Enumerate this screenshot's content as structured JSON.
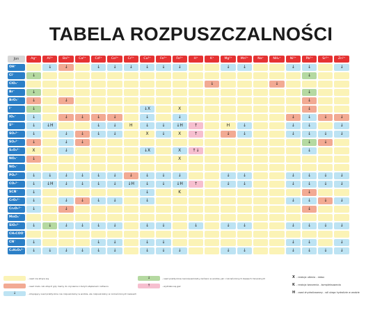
{
  "title": "TABELA ROZPUSZCZALNOŚCI",
  "header_label": "Jon",
  "colors": {
    "Y": "#fbf3b6",
    "B": "#bde3f3",
    "R": "#f2aa93",
    "G": "#b5d9a1",
    "P": "#f6bfcf",
    "E": "#ececec",
    "cation_red": "#e53232",
    "anion_blue": "#2b7fc7"
  },
  "cations": [
    "Ag⁺",
    "Al³⁺",
    "Ba²⁺",
    "Ca²⁺",
    "Cd²⁺",
    "Co²⁺",
    "Cr³⁺",
    "Cu²⁺",
    "Fe²⁺",
    "Fe³⁺",
    "H⁺",
    "K⁺",
    "Mg²⁺",
    "Mn²⁺",
    "Na⁺",
    "NH₄⁺",
    "Ni²⁺",
    "Pb²⁺",
    "Sr²⁺",
    "Zn²⁺"
  ],
  "rows": [
    {
      "anion": "OH⁻",
      "cells": [
        "Y:",
        "B:↓",
        "R:↓",
        "Y:",
        "B:↓",
        "B:↓",
        "B:↓",
        "B:↓",
        "B:↓",
        "B:↓",
        "Y:",
        "Y:",
        "B:↓",
        "B:↓",
        "Y:",
        "Y:",
        "B:↓",
        "B:↓",
        "Y:",
        "B:↓"
      ]
    },
    {
      "anion": "Cl⁻",
      "cells": [
        "G:↓",
        "Y:",
        "Y:",
        "Y:",
        "Y:",
        "Y:",
        "Y:",
        "Y:",
        "Y:",
        "Y:",
        "Y:",
        "Y:",
        "Y:",
        "Y:",
        "Y:",
        "Y:",
        "Y:",
        "G:↓",
        "Y:",
        "Y:"
      ]
    },
    {
      "anion": "ClO₄⁻",
      "cells": [
        "Y:",
        "Y:",
        "Y:",
        "Y:",
        "Y:",
        "Y:",
        "Y:",
        "Y:",
        "Y:",
        "Y:",
        "Y:",
        "R:↓",
        "Y:",
        "Y:",
        "Y:",
        "R:↓",
        "Y:",
        "Y:",
        "Y:",
        "Y:"
      ]
    },
    {
      "anion": "Br⁻",
      "cells": [
        "G:↓",
        "Y:",
        "Y:",
        "Y:",
        "Y:",
        "Y:",
        "Y:",
        "Y:",
        "Y:",
        "Y:",
        "Y:",
        "Y:",
        "Y:",
        "Y:",
        "Y:",
        "Y:",
        "Y:",
        "G:↓",
        "Y:",
        "Y:"
      ]
    },
    {
      "anion": "BrO₃⁻",
      "cells": [
        "R:↓",
        "Y:",
        "R:↓",
        "Y:",
        "Y:",
        "Y:",
        "Y:",
        "Y:",
        "Y:",
        "Y:",
        "Y:",
        "Y:",
        "Y:",
        "Y:",
        "Y:",
        "Y:",
        "Y:",
        "R:↓",
        "Y:",
        "Y:"
      ]
    },
    {
      "anion": "I⁻",
      "cells": [
        "G:↓",
        "Y:",
        "Y:",
        "Y:",
        "Y:",
        "Y:",
        "Y:",
        "B:↓X",
        "Y:",
        "Y:X",
        "Y:",
        "Y:",
        "Y:",
        "Y:",
        "Y:",
        "Y:",
        "Y:",
        "R:↓",
        "Y:",
        "Y:"
      ]
    },
    {
      "anion": "IO₃⁻",
      "cells": [
        "B:↓",
        "Y:",
        "R:↓",
        "R:↓",
        "R:↓",
        "R:↓",
        "Y:",
        "B:↓",
        "Y:",
        "B:↓",
        "Y:",
        "Y:",
        "Y:",
        "Y:",
        "Y:",
        "Y:",
        "R:↓",
        "B:↓",
        "R:↓",
        "R:↓"
      ]
    },
    {
      "anion": "S²⁻",
      "cells": [
        "B:↓",
        "B:↓H",
        "Y:",
        "Y:",
        "B:↓",
        "B:↓",
        "Y:H",
        "B:↓",
        "B:↓",
        "B:↓H",
        "P:↑",
        "Y:",
        "Y:H",
        "B:↓",
        "Y:",
        "Y:",
        "B:↓",
        "B:↓",
        "Y:",
        "B:↓"
      ]
    },
    {
      "anion": "SO₃²⁻",
      "cells": [
        "B:↓",
        "Y:",
        "B:↓",
        "R:↓",
        "B:↓",
        "B:↓",
        "Y:",
        "Y:X",
        "B:↓",
        "Y:X",
        "P:↑",
        "Y:",
        "R:↓",
        "B:↓",
        "Y:",
        "Y:",
        "B:↓",
        "B:↓",
        "B:↓",
        "B:↓"
      ]
    },
    {
      "anion": "SO₄²⁻",
      "cells": [
        "R:↓",
        "Y:",
        "B:↓",
        "R:↓",
        "Y:",
        "Y:",
        "Y:",
        "Y:",
        "Y:",
        "Y:",
        "Y:",
        "Y:",
        "Y:",
        "Y:",
        "Y:",
        "Y:",
        "Y:",
        "G:↓",
        "R:↓",
        "Y:"
      ]
    },
    {
      "anion": "S₂O₃²⁻",
      "cells": [
        "Y:X",
        "Y:",
        "B:↓",
        "Y:",
        "Y:",
        "Y:",
        "Y:",
        "B:↓X",
        "Y:",
        "B:X",
        "P:↑↓",
        "Y:",
        "Y:",
        "Y:",
        "Y:",
        "Y:",
        "Y:",
        "B:↓",
        "Y:",
        "Y:"
      ]
    },
    {
      "anion": "NO₂⁻",
      "cells": [
        "R:↓",
        "Y:",
        "Y:",
        "Y:",
        "Y:",
        "Y:",
        "Y:",
        "Y:",
        "Y:",
        "Y:X",
        "Y:",
        "Y:",
        "Y:",
        "Y:",
        "Y:",
        "Y:",
        "Y:",
        "Y:",
        "Y:",
        "Y:"
      ]
    },
    {
      "anion": "NO₃⁻",
      "cells": [
        "Y:",
        "Y:",
        "Y:",
        "Y:",
        "Y:",
        "Y:",
        "Y:",
        "Y:",
        "Y:",
        "Y:",
        "Y:",
        "Y:",
        "Y:",
        "Y:",
        "Y:",
        "Y:",
        "Y:",
        "Y:",
        "Y:",
        "Y:"
      ]
    },
    {
      "anion": "PO₄³⁻",
      "cells": [
        "B:↓",
        "B:↓",
        "B:↓",
        "B:↓",
        "B:↓",
        "B:↓",
        "R:↓",
        "B:↓",
        "B:↓",
        "B:↓",
        "Y:",
        "Y:",
        "B:↓",
        "B:↓",
        "Y:",
        "Y:",
        "B:↓",
        "B:↓",
        "B:↓",
        "B:↓"
      ]
    },
    {
      "anion": "CO₃²⁻",
      "cells": [
        "B:↓",
        "B:↓H",
        "B:↓",
        "B:↓",
        "B:↓",
        "B:↓",
        "B:↓H",
        "B:↓",
        "B:↓",
        "B:↓H",
        "P:↑",
        "Y:",
        "B:↓",
        "B:↓",
        "Y:",
        "Y:",
        "B:↓",
        "B:↓",
        "B:↓",
        "B:↓"
      ]
    },
    {
      "anion": "SCN⁻",
      "cells": [
        "B:↓",
        "Y:",
        "Y:",
        "Y:",
        "Y:",
        "Y:",
        "Y:",
        "B:↓",
        "Y:",
        "Y:K",
        "Y:",
        "Y:",
        "Y:",
        "Y:",
        "Y:",
        "Y:",
        "Y:",
        "R:↓",
        "Y:",
        "Y:"
      ]
    },
    {
      "anion": "CrO₄²⁻",
      "cells": [
        "B:↓",
        "Y:",
        "B:↓",
        "R:↓",
        "B:↓",
        "B:↓",
        "Y:",
        "B:↓",
        "Y:",
        "Y:",
        "Y:",
        "Y:",
        "Y:",
        "Y:",
        "Y:",
        "Y:",
        "B:↓",
        "B:↓",
        "R:↓",
        "B:↓"
      ]
    },
    {
      "anion": "Cr₂O₇²⁻",
      "cells": [
        "B:↓",
        "Y:",
        "R:↓",
        "Y:",
        "Y:",
        "Y:",
        "Y:",
        "Y:",
        "Y:",
        "Y:",
        "Y:",
        "Y:",
        "Y:",
        "Y:",
        "Y:",
        "Y:",
        "Y:",
        "R:↓",
        "Y:",
        "Y:"
      ]
    },
    {
      "anion": "MnO₄⁻",
      "cells": [
        "Y:",
        "Y:",
        "Y:",
        "Y:",
        "Y:",
        "Y:",
        "Y:",
        "Y:",
        "Y:",
        "Y:",
        "Y:",
        "Y:",
        "Y:",
        "Y:",
        "Y:",
        "Y:",
        "Y:",
        "Y:",
        "Y:",
        "Y:"
      ]
    },
    {
      "anion": "SiO₃²⁻",
      "cells": [
        "B:↓",
        "G:↓",
        "B:↓",
        "B:↓",
        "B:↓",
        "B:↓",
        "Y:",
        "B:↓",
        "B:↓",
        "Y:",
        "B:↓",
        "Y:",
        "B:↓",
        "B:↓",
        "Y:",
        "Y:",
        "B:↓",
        "B:↓",
        "B:↓",
        "B:↓"
      ]
    },
    {
      "anion": "CH₃COO⁻",
      "cells": [
        "Y:",
        "Y:",
        "Y:",
        "Y:",
        "Y:",
        "Y:",
        "Y:",
        "Y:",
        "Y:",
        "Y:",
        "Y:",
        "Y:",
        "Y:",
        "Y:",
        "Y:",
        "Y:",
        "Y:",
        "Y:",
        "Y:",
        "Y:"
      ]
    },
    {
      "anion": "CN⁻",
      "cells": [
        "B:↓",
        "Y:",
        "Y:",
        "Y:",
        "B:↓",
        "B:↓",
        "Y:",
        "B:↓",
        "B:↓",
        "Y:",
        "Y:",
        "Y:",
        "Y:",
        "Y:",
        "Y:",
        "Y:",
        "B:↓",
        "B:↓",
        "Y:",
        "B:↓"
      ]
    },
    {
      "anion": "C₂H₂O₄²⁻",
      "cells": [
        "B:↓",
        "B:↓",
        "B:↓",
        "B:↓",
        "B:↓",
        "B:↓",
        "Y:",
        "B:↓",
        "B:↓",
        "B:↓",
        "Y:",
        "Y:",
        "B:↓",
        "B:↓",
        "Y:",
        "Y:",
        "B:↓",
        "B:↓",
        "B:↓",
        "B:↓"
      ]
    }
  ],
  "legend": {
    "yellow": "- osad nie strąca się",
    "red": "- osad mało- lub strącić gdy mamy do czynienia z dużym stężeniem roztworu",
    "blue": "- strącający osad praktycznie nie rozpuszczalny w wodzie, ale rozpuszczalny w rozcieńczonych kwasach",
    "blue_symbol": "↓",
    "green": "- osad praktycznie nierozpuszczalny zarówno w wodzie, jak i rozcieńczonych kwasach mineralnych",
    "green_symbol": "↓",
    "pink": "- wydziela się gaz",
    "pink_symbol": "↑",
    "key_x": {
      "sym": "X",
      "text": "- reakcja utlenia - redox"
    },
    "key_k": {
      "sym": "K",
      "text": "- reakcja tworzenia - kompleksowania"
    },
    "key_h": {
      "sym": "H",
      "text": "- osad zhydrolizowany - sól ulega hydrolizie w wodzie"
    }
  }
}
